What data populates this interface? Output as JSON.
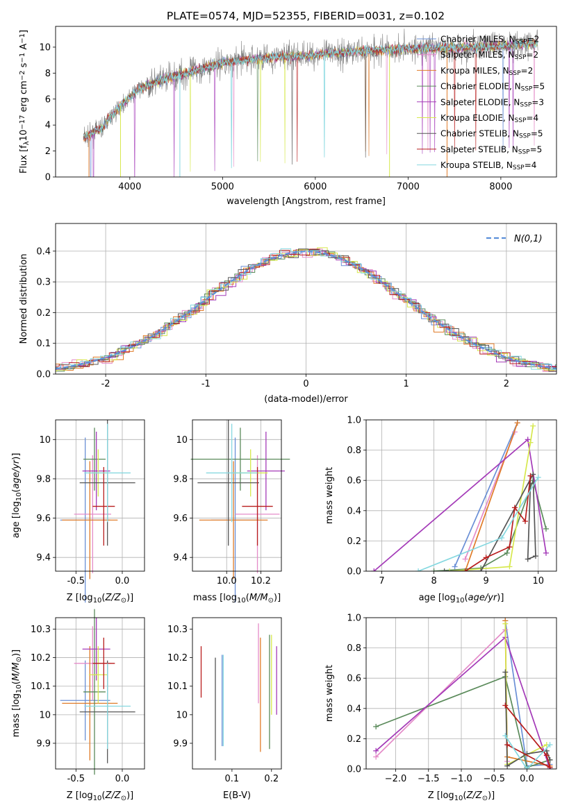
{
  "figure": {
    "title": "PLATE=0574, MJD=52355, FIBERID=0031, z=0.102"
  },
  "models": [
    {
      "name": "Chabrier MILES, N_SSP=2",
      "label": "Chabrier MILES, N",
      "sub": "SSP",
      "tail": "=2",
      "color": "#6a8fd6"
    },
    {
      "name": "Salpeter MILES, N_SSP=2",
      "label": "Salpeter MILES, N",
      "sub": "SSP",
      "tail": "=2",
      "color": "#e48bc8"
    },
    {
      "name": "Kroupa MILES, N_SSP=2",
      "label": "Kroupa MILES, N",
      "sub": "SSP",
      "tail": "=2",
      "color": "#e07b28"
    },
    {
      "name": "Chabrier ELODIE, N_SSP=5",
      "label": "Chabrier ELODIE, N",
      "sub": "SSP",
      "tail": "=5",
      "color": "#5a8a5a"
    },
    {
      "name": "Salpeter ELODIE, N_SSP=3",
      "label": "Salpeter ELODIE, N",
      "sub": "SSP",
      "tail": "=3",
      "color": "#a43ab8"
    },
    {
      "name": "Kroupa ELODIE, N_SSP=4",
      "label": "Kroupa ELODIE, N",
      "sub": "SSP",
      "tail": "=4",
      "color": "#d6e84c"
    },
    {
      "name": "Chabrier STELIB, N_SSP=5",
      "label": "Chabrier STELIB, N",
      "sub": "SSP",
      "tail": "=5",
      "color": "#555555"
    },
    {
      "name": "Salpeter STELIB, N_SSP=5",
      "label": "Salpeter STELIB, N",
      "sub": "SSP",
      "tail": "=5",
      "color": "#b81c1c"
    },
    {
      "name": "Kroupa STELIB, N_SSP=4",
      "label": "Kroupa STELIB, N",
      "sub": "SSP",
      "tail": "=4",
      "color": "#86d8e0"
    }
  ],
  "chart_data": [
    {
      "id": "spectrum",
      "type": "line",
      "title": "PLATE=0574, MJD=52355, FIBERID=0031, z=0.102",
      "xlabel": "wavelength [Angstrom, rest frame]",
      "ylabel": "Flux [f_λ 10^-17 erg cm^-2 s^-1 A^-1]",
      "xlim": [
        3200,
        8600
      ],
      "ylim": [
        0,
        11.6
      ],
      "xticks": [
        4000,
        5000,
        6000,
        7000,
        8000
      ],
      "yticks": [
        0,
        2,
        4,
        6,
        8,
        10
      ],
      "grid": false,
      "legend": "right",
      "continuum": [
        [
          3500,
          3.0
        ],
        [
          3700,
          3.8
        ],
        [
          3900,
          5.5
        ],
        [
          4100,
          6.8
        ],
        [
          4400,
          7.6
        ],
        [
          4700,
          8.2
        ],
        [
          5000,
          8.8
        ],
        [
          5500,
          9.2
        ],
        [
          6000,
          9.4
        ],
        [
          6500,
          9.7
        ],
        [
          7000,
          9.9
        ],
        [
          7500,
          9.95
        ],
        [
          8000,
          10.1
        ],
        [
          8400,
          10.3
        ]
      ]
    },
    {
      "id": "residuals",
      "type": "line",
      "xlabel": "(data-model)/error",
      "ylabel": "Normed distribution",
      "xlim": [
        -2.5,
        2.5
      ],
      "ylim": [
        0,
        0.49
      ],
      "xticks": [
        -2,
        -1,
        0,
        1,
        2
      ],
      "yticks": [
        0.0,
        0.1,
        0.2,
        0.3,
        0.4
      ],
      "grid": true,
      "legend": "top-right",
      "gaussian_label": "N(0,1)",
      "gaussian_color": "#5b8fd9"
    },
    {
      "id": "age_vs_Z",
      "type": "scatter",
      "xlabel": "Z [log10(Z/Z_sun)]",
      "ylabel": "age [log10(age/yr)]",
      "xlim": [
        -0.72,
        0.24
      ],
      "ylim": [
        9.33,
        10.1
      ],
      "xticks": [
        -0.5,
        0.0
      ],
      "yticks": [
        9.4,
        9.6,
        9.8,
        10.0
      ],
      "grid": true,
      "points": [
        {
          "x": -0.4,
          "xerr": 0.27,
          "y": 9.59,
          "yerr": 0.42
        },
        {
          "x": -0.32,
          "xerr": 0.2,
          "y": 9.62,
          "yerr": 0.3
        },
        {
          "x": -0.35,
          "xerr": 0.3,
          "y": 9.59,
          "yerr": 0.3
        },
        {
          "x": -0.3,
          "xerr": 0.12,
          "y": 9.9,
          "yerr": 0.16
        },
        {
          "x": -0.28,
          "xerr": 0.15,
          "y": 9.84,
          "yerr": 0.2
        },
        {
          "x": -0.26,
          "xerr": 0.1,
          "y": 9.83,
          "yerr": 0.12
        },
        {
          "x": -0.16,
          "xerr": 0.3,
          "y": 9.78,
          "yerr": 0.32
        },
        {
          "x": -0.2,
          "xerr": 0.12,
          "y": 9.66,
          "yerr": 0.2
        },
        {
          "x": -0.16,
          "xerr": 0.25,
          "y": 9.83,
          "yerr": 0.25
        }
      ]
    },
    {
      "id": "age_vs_mass",
      "type": "scatter",
      "xlabel": "mass [log10(M/M_sun)]",
      "xlim": [
        9.8,
        10.32
      ],
      "ylim": [
        9.33,
        10.1
      ],
      "xticks": [
        10.0,
        10.2
      ],
      "yticks": [
        9.4,
        9.6,
        9.8,
        10.0
      ],
      "grid": true,
      "points": [
        {
          "x": 10.05,
          "xerr": 0.14,
          "y": 9.59,
          "yerr": 0.42
        },
        {
          "x": 10.18,
          "xerr": 0.13,
          "y": 9.62,
          "yerr": 0.3
        },
        {
          "x": 10.04,
          "xerr": 0.2,
          "y": 9.59,
          "yerr": 0.3
        },
        {
          "x": 10.08,
          "xerr": 0.29,
          "y": 9.9,
          "yerr": 0.16
        },
        {
          "x": 10.23,
          "xerr": 0.11,
          "y": 9.84,
          "yerr": 0.2
        },
        {
          "x": 10.14,
          "xerr": 0.1,
          "y": 9.83,
          "yerr": 0.12
        },
        {
          "x": 10.01,
          "xerr": 0.18,
          "y": 9.78,
          "yerr": 0.32
        },
        {
          "x": 10.18,
          "xerr": 0.09,
          "y": 9.66,
          "yerr": 0.2
        },
        {
          "x": 10.03,
          "xerr": 0.15,
          "y": 9.83,
          "yerr": 0.25
        }
      ]
    },
    {
      "id": "weight_vs_age",
      "type": "line",
      "xlabel": "age [log10(age/yr)]",
      "ylabel": "mass weight",
      "xlim": [
        6.7,
        10.35
      ],
      "ylim": [
        0,
        1.0
      ],
      "xticks": [
        7,
        8,
        9,
        10
      ],
      "yticks": [
        0.0,
        0.2,
        0.4,
        0.6,
        0.8,
        1.0
      ],
      "grid": true,
      "series": [
        {
          "x": [
            8.4,
            9.6
          ],
          "y": [
            0.03,
            0.98
          ]
        },
        {
          "x": [
            8.6,
            9.55
          ],
          "y": [
            0.08,
            0.92
          ]
        },
        {
          "x": [
            8.6,
            9.6
          ],
          "y": [
            0.0,
            0.98
          ]
        },
        {
          "x": [
            8.0,
            8.9,
            9.4,
            9.9,
            10.15
          ],
          "y": [
            0.0,
            0.02,
            0.12,
            0.6,
            0.28
          ]
        },
        {
          "x": [
            6.85,
            9.8,
            10.15
          ],
          "y": [
            0.0,
            0.87,
            0.12
          ]
        },
        {
          "x": [
            8.3,
            9.45,
            9.85,
            9.9
          ],
          "y": [
            0.0,
            0.03,
            0.85,
            0.96
          ]
        },
        {
          "x": [
            8.2,
            8.9,
            9.9,
            9.95,
            9.8,
            9.85
          ],
          "y": [
            0.0,
            0.0,
            0.64,
            0.1,
            0.08,
            0.58
          ]
        },
        {
          "x": [
            8.6,
            9.0,
            9.45,
            9.55,
            9.75,
            9.85
          ],
          "y": [
            0.0,
            0.09,
            0.16,
            0.42,
            0.33,
            0.63
          ]
        },
        {
          "x": [
            7.7,
            9.3,
            10.0
          ],
          "y": [
            0.0,
            0.22,
            0.62
          ]
        }
      ]
    },
    {
      "id": "mass_vs_Z",
      "type": "scatter",
      "xlabel": "Z [log10(Z/Z_sun)]",
      "ylabel": "mass [log10(M/M_sun)]",
      "xlim": [
        -0.72,
        0.24
      ],
      "ylim": [
        9.81,
        10.34
      ],
      "xticks": [
        -0.5,
        0.0
      ],
      "yticks": [
        9.9,
        10.0,
        10.1,
        10.2,
        10.3
      ],
      "grid": true,
      "points": [
        {
          "x": -0.4,
          "xerr": 0.27,
          "y": 10.05,
          "yerr": 0.14
        },
        {
          "x": -0.32,
          "xerr": 0.2,
          "y": 10.18,
          "yerr": 0.13
        },
        {
          "x": -0.35,
          "xerr": 0.3,
          "y": 10.04,
          "yerr": 0.2
        },
        {
          "x": -0.3,
          "xerr": 0.12,
          "y": 10.08,
          "yerr": 0.29
        },
        {
          "x": -0.28,
          "xerr": 0.15,
          "y": 10.23,
          "yerr": 0.11
        },
        {
          "x": -0.26,
          "xerr": 0.1,
          "y": 10.14,
          "yerr": 0.1
        },
        {
          "x": -0.16,
          "xerr": 0.3,
          "y": 10.01,
          "yerr": 0.18
        },
        {
          "x": -0.2,
          "xerr": 0.12,
          "y": 10.18,
          "yerr": 0.09
        },
        {
          "x": -0.16,
          "xerr": 0.25,
          "y": 10.03,
          "yerr": 0.15
        }
      ]
    },
    {
      "id": "mass_vs_EBV",
      "type": "scatter",
      "xlabel": "E(B-V)",
      "xlim": [
        0.0,
        0.225
      ],
      "ylim": [
        9.81,
        10.34
      ],
      "xticks": [
        0.1,
        0.2
      ],
      "yticks": [
        9.9,
        10.0,
        10.1,
        10.2,
        10.3
      ],
      "grid": false,
      "points": [
        {
          "x": 0.075,
          "y": 10.05,
          "yerr": 0.16
        },
        {
          "x": 0.167,
          "y": 10.18,
          "yerr": 0.14
        },
        {
          "x": 0.172,
          "y": 10.07,
          "yerr": 0.2
        },
        {
          "x": 0.195,
          "y": 10.08,
          "yerr": 0.2
        },
        {
          "x": 0.213,
          "y": 10.12,
          "yerr": 0.12
        },
        {
          "x": 0.2,
          "y": 10.14,
          "yerr": 0.14
        },
        {
          "x": 0.058,
          "y": 10.02,
          "yerr": 0.18
        },
        {
          "x": 0.022,
          "y": 10.15,
          "yerr": 0.09
        },
        {
          "x": 0.078,
          "y": 10.05,
          "yerr": 0.16
        }
      ]
    },
    {
      "id": "weight_vs_Z",
      "type": "line",
      "xlabel": "Z [log10(Z/Z_sun)]",
      "ylabel": "mass weight",
      "xlim": [
        -2.45,
        0.45
      ],
      "ylim": [
        0,
        1.0
      ],
      "xticks": [
        -2.0,
        -1.5,
        -1.0,
        -0.5,
        0.0
      ],
      "yticks": [
        0.0,
        0.2,
        0.4,
        0.6,
        0.8,
        1.0
      ],
      "grid": true,
      "series": [
        {
          "x": [
            -0.33,
            0.0,
            0.35
          ],
          "y": [
            0.98,
            0.02,
            0.03
          ]
        },
        {
          "x": [
            -2.3,
            -0.33,
            -0.3
          ],
          "y": [
            0.08,
            0.92,
            0.05
          ]
        },
        {
          "x": [
            -0.33,
            -0.3,
            0.35
          ],
          "y": [
            0.98,
            0.08,
            0.02
          ]
        },
        {
          "x": [
            -2.3,
            -0.33,
            0.0,
            0.35
          ],
          "y": [
            0.28,
            0.61,
            0.01,
            0.06
          ]
        },
        {
          "x": [
            -2.3,
            -0.33,
            0.35
          ],
          "y": [
            0.12,
            0.87,
            0.0
          ]
        },
        {
          "x": [
            -0.33,
            -0.3,
            0.3
          ],
          "y": [
            0.96,
            0.03,
            0.16
          ]
        },
        {
          "x": [
            -0.33,
            -0.3,
            0.0,
            0.3,
            0.35
          ],
          "y": [
            0.64,
            0.02,
            0.1,
            0.12,
            0.06
          ]
        },
        {
          "x": [
            -0.33,
            0.3,
            0.35,
            -0.3
          ],
          "y": [
            0.42,
            0.09,
            0.01,
            0.16
          ]
        },
        {
          "x": [
            -0.33,
            0.0,
            0.35
          ],
          "y": [
            0.22,
            0.0,
            0.16
          ]
        }
      ]
    }
  ]
}
